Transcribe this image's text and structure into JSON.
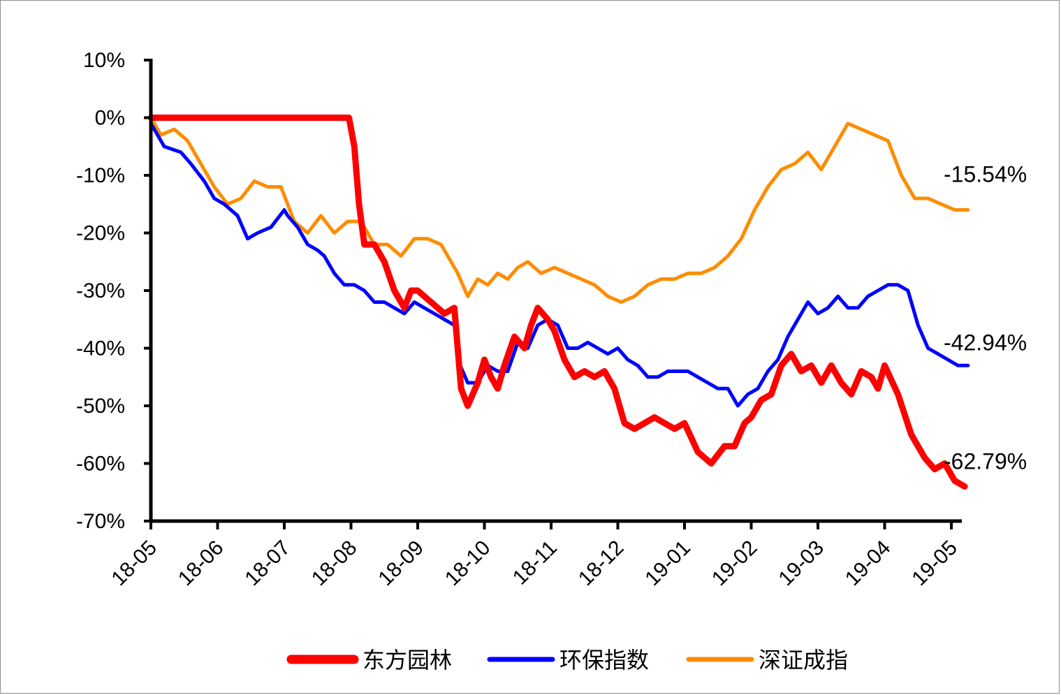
{
  "chart_data": {
    "type": "line",
    "title": "",
    "xlabel": "",
    "ylabel": "",
    "ylim": [
      -70,
      10
    ],
    "y_ticks": [
      "10%",
      "0%",
      "-10%",
      "-20%",
      "-30%",
      "-40%",
      "-50%",
      "-60%",
      "-70%"
    ],
    "y_tick_values": [
      10,
      0,
      -10,
      -20,
      -30,
      -40,
      -50,
      -60,
      -70
    ],
    "x_ticks": [
      "18-05",
      "18-06",
      "18-07",
      "18-08",
      "18-09",
      "18-10",
      "18-11",
      "18-12",
      "19-01",
      "19-02",
      "19-03",
      "19-04",
      "19-05"
    ],
    "x_range": [
      0,
      12.25
    ],
    "grid": false,
    "legend_position": "bottom",
    "series": [
      {
        "name": "东方园林",
        "color": "#ff0000",
        "end_label": "-62.79%",
        "x": [
          0,
          1,
          2,
          2.97,
          3.05,
          3.12,
          3.2,
          3.35,
          3.5,
          3.65,
          3.8,
          3.9,
          4.0,
          4.2,
          4.4,
          4.55,
          4.6,
          4.65,
          4.75,
          4.9,
          5.0,
          5.1,
          5.2,
          5.3,
          5.45,
          5.6,
          5.7,
          5.8,
          5.95,
          6.05,
          6.2,
          6.35,
          6.5,
          6.65,
          6.8,
          6.95,
          7.1,
          7.25,
          7.4,
          7.55,
          7.7,
          7.85,
          8.0,
          8.2,
          8.4,
          8.6,
          8.75,
          8.9,
          9.0,
          9.15,
          9.3,
          9.45,
          9.6,
          9.75,
          9.9,
          10.05,
          10.2,
          10.35,
          10.5,
          10.65,
          10.8,
          10.9,
          11.0,
          11.2,
          11.4,
          11.6,
          11.75,
          11.9,
          12.05,
          12.2
        ],
        "y": [
          0,
          0,
          0,
          0,
          -5,
          -15,
          -22,
          -22,
          -25,
          -30,
          -33,
          -30,
          -30,
          -32,
          -34,
          -33,
          -40,
          -47,
          -50,
          -46,
          -42,
          -45,
          -47,
          -43,
          -38,
          -40,
          -36,
          -33,
          -35,
          -37,
          -42,
          -45,
          -44,
          -45,
          -44,
          -47,
          -53,
          -54,
          -53,
          -52,
          -53,
          -54,
          -53,
          -58,
          -60,
          -57,
          -57,
          -53,
          -52,
          -49,
          -48,
          -43,
          -41,
          -44,
          -43,
          -46,
          -43,
          -46,
          -48,
          -44,
          -45,
          -47,
          -43,
          -48,
          -55,
          -59,
          -61,
          -60,
          -63,
          -64
        ]
      },
      {
        "name": "环保指数",
        "color": "#0000ff",
        "end_label": "-42.94%",
        "x": [
          0,
          0.2,
          0.45,
          0.6,
          0.8,
          0.95,
          1.1,
          1.3,
          1.45,
          1.6,
          1.8,
          2.0,
          2.05,
          2.2,
          2.35,
          2.5,
          2.6,
          2.75,
          2.9,
          3.05,
          3.2,
          3.35,
          3.5,
          3.65,
          3.8,
          3.95,
          4.1,
          4.25,
          4.4,
          4.55,
          4.6,
          4.75,
          4.9,
          5.05,
          5.2,
          5.35,
          5.5,
          5.65,
          5.8,
          5.95,
          6.1,
          6.25,
          6.4,
          6.55,
          6.7,
          6.85,
          7.0,
          7.15,
          7.3,
          7.45,
          7.6,
          7.75,
          7.9,
          8.05,
          8.2,
          8.35,
          8.5,
          8.65,
          8.8,
          8.95,
          9.1,
          9.25,
          9.4,
          9.55,
          9.7,
          9.85,
          10.0,
          10.15,
          10.3,
          10.45,
          10.6,
          10.75,
          10.9,
          11.05,
          11.2,
          11.35,
          11.5,
          11.65,
          11.8,
          11.95,
          12.1,
          12.25
        ],
        "y": [
          -1,
          -5,
          -6,
          -8,
          -11,
          -14,
          -15,
          -17,
          -21,
          -20,
          -19,
          -16,
          -17,
          -19,
          -22,
          -23,
          -24,
          -27,
          -29,
          -29,
          -30,
          -32,
          -32,
          -33,
          -34,
          -32,
          -33,
          -34,
          -35,
          -36,
          -42,
          -46,
          -46,
          -43,
          -44,
          -44,
          -39,
          -40,
          -36,
          -35,
          -36,
          -40,
          -40,
          -39,
          -40,
          -41,
          -40,
          -42,
          -43,
          -45,
          -45,
          -44,
          -44,
          -44,
          -45,
          -46,
          -47,
          -47,
          -50,
          -48,
          -47,
          -44,
          -42,
          -38,
          -35,
          -32,
          -34,
          -33,
          -31,
          -33,
          -33,
          -31,
          -30,
          -29,
          -29,
          -30,
          -36,
          -40,
          -41,
          -42,
          -43,
          -43
        ]
      },
      {
        "name": "深证成指",
        "color": "#ff8c00",
        "end_label": "-15.54%",
        "x": [
          0,
          0.15,
          0.35,
          0.55,
          0.75,
          0.95,
          1.15,
          1.35,
          1.55,
          1.75,
          1.95,
          2.15,
          2.35,
          2.55,
          2.75,
          2.95,
          3.15,
          3.35,
          3.55,
          3.75,
          3.95,
          4.15,
          4.35,
          4.5,
          4.6,
          4.75,
          4.9,
          5.05,
          5.2,
          5.35,
          5.5,
          5.65,
          5.85,
          6.05,
          6.25,
          6.45,
          6.65,
          6.85,
          7.05,
          7.25,
          7.45,
          7.65,
          7.85,
          8.05,
          8.25,
          8.45,
          8.65,
          8.85,
          9.05,
          9.25,
          9.45,
          9.65,
          9.85,
          10.05,
          10.25,
          10.45,
          10.65,
          10.85,
          11.05,
          11.25,
          11.45,
          11.65,
          11.85,
          12.05,
          12.25
        ],
        "y": [
          0,
          -3,
          -2,
          -4,
          -8,
          -12,
          -15,
          -14,
          -11,
          -12,
          -12,
          -18,
          -20,
          -17,
          -20,
          -18,
          -18,
          -22,
          -22,
          -24,
          -21,
          -21,
          -22,
          -25,
          -27,
          -31,
          -28,
          -29,
          -27,
          -28,
          -26,
          -25,
          -27,
          -26,
          -27,
          -28,
          -29,
          -31,
          -32,
          -31,
          -29,
          -28,
          -28,
          -27,
          -27,
          -26,
          -24,
          -21,
          -16,
          -12,
          -9,
          -8,
          -6,
          -9,
          -5,
          -1,
          -2,
          -3,
          -4,
          -10,
          -14,
          -14,
          -15,
          -16,
          -16
        ]
      }
    ]
  }
}
